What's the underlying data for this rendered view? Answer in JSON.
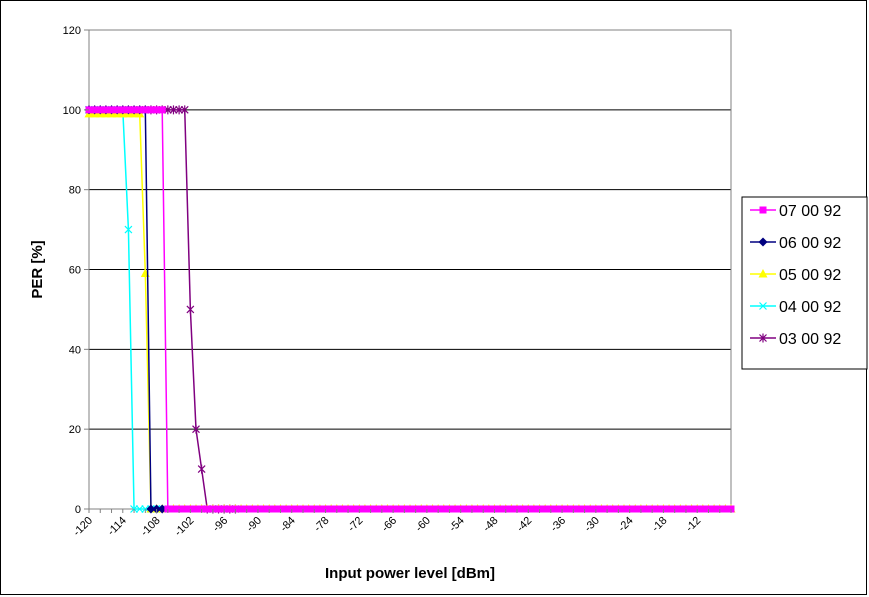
{
  "chart_data": {
    "type": "line",
    "title": "",
    "xlabel": "Input power level [dBm]",
    "ylabel": "PER [%]",
    "xlim": [
      -120,
      -6
    ],
    "ylim": [
      0,
      120
    ],
    "x_ticks": [
      -120,
      -114,
      -108,
      -102,
      -96,
      -90,
      -84,
      -78,
      -72,
      -66,
      -60,
      -54,
      -48,
      -42,
      -36,
      -30,
      -24,
      -18,
      -12
    ],
    "y_ticks": [
      0,
      20,
      40,
      60,
      80,
      100,
      120
    ],
    "grid": "horizontal",
    "legend_position": "right",
    "series": [
      {
        "name": "07 00 92",
        "color": "#ff00ff",
        "marker": "square",
        "x": [
          -120,
          -119,
          -118,
          -117,
          -116,
          -115,
          -114,
          -113,
          -112,
          -111,
          -110,
          -109,
          -108,
          -107,
          -106,
          -105,
          -104,
          -103,
          -102,
          -101,
          -100,
          -99,
          -98,
          -97,
          -96,
          -95,
          -94,
          -93,
          -92,
          -91,
          -90,
          -89,
          -88,
          -87,
          -86,
          -85,
          -84,
          -83,
          -82,
          -81,
          -80,
          -79,
          -78,
          -77,
          -76,
          -75,
          -74,
          -73,
          -72,
          -71,
          -70,
          -69,
          -68,
          -67,
          -66,
          -65,
          -64,
          -63,
          -62,
          -61,
          -60,
          -59,
          -58,
          -57,
          -56,
          -55,
          -54,
          -53,
          -52,
          -51,
          -50,
          -49,
          -48,
          -47,
          -46,
          -45,
          -44,
          -43,
          -42,
          -41,
          -40,
          -39,
          -38,
          -37,
          -36,
          -35,
          -34,
          -33,
          -32,
          -31,
          -30,
          -29,
          -28,
          -27,
          -26,
          -25,
          -24,
          -23,
          -22,
          -21,
          -20,
          -19,
          -18,
          -17,
          -16,
          -15,
          -14,
          -13,
          -12,
          -11,
          -10,
          -9,
          -8,
          -7,
          -6
        ],
        "y": [
          100,
          100,
          100,
          100,
          100,
          100,
          100,
          100,
          100,
          100,
          100,
          100,
          100,
          100,
          0,
          0,
          0,
          0,
          0,
          0,
          0,
          0,
          0,
          0,
          0,
          0,
          0,
          0,
          0,
          0,
          0,
          0,
          0,
          0,
          0,
          0,
          0,
          0,
          0,
          0,
          0,
          0,
          0,
          0,
          0,
          0,
          0,
          0,
          0,
          0,
          0,
          0,
          0,
          0,
          0,
          0,
          0,
          0,
          0,
          0,
          0,
          0,
          0,
          0,
          0,
          0,
          0,
          0,
          0,
          0,
          0,
          0,
          0,
          0,
          0,
          0,
          0,
          0,
          0,
          0,
          0,
          0,
          0,
          0,
          0,
          0,
          0,
          0,
          0,
          0,
          0,
          0,
          0,
          0,
          0,
          0,
          0,
          0,
          0,
          0,
          0,
          0,
          0,
          0,
          0,
          0,
          0,
          0,
          0,
          0,
          0,
          0,
          0,
          0,
          0
        ]
      },
      {
        "name": "06 00 92",
        "color": "#000080",
        "marker": "diamond",
        "x": [
          -120,
          -119,
          -118,
          -117,
          -116,
          -115,
          -114,
          -113,
          -112,
          -111,
          -110,
          -109,
          -108,
          -107
        ],
        "y": [
          100,
          100,
          100,
          100,
          100,
          100,
          100,
          100,
          100,
          100,
          100,
          0,
          0,
          0
        ]
      },
      {
        "name": "05 00 92",
        "color": "#ffff00",
        "marker": "triangle",
        "x": [
          -120,
          -119,
          -118,
          -117,
          -116,
          -115,
          -114,
          -113,
          -112,
          -111,
          -110,
          -109,
          -108,
          -107,
          -106,
          -105,
          -104,
          -103,
          -102,
          -101,
          -100,
          -99,
          -98,
          -97,
          -96,
          -95,
          -94,
          -93,
          -92,
          -91,
          -90,
          -89,
          -88,
          -87,
          -86,
          -85,
          -84,
          -83,
          -82,
          -81,
          -80,
          -79,
          -78,
          -77,
          -76,
          -75,
          -74,
          -73,
          -72,
          -71,
          -70,
          -69,
          -68,
          -67,
          -66,
          -65,
          -64,
          -63,
          -62,
          -61,
          -60,
          -59,
          -58,
          -57,
          -56,
          -55,
          -54,
          -53,
          -52,
          -51,
          -50,
          -49,
          -48,
          -47,
          -46,
          -45,
          -44,
          -43,
          -42,
          -41,
          -40,
          -39,
          -38,
          -37,
          -36,
          -35,
          -34,
          -33,
          -32,
          -31,
          -30,
          -29,
          -28,
          -27,
          -26,
          -25,
          -24,
          -23,
          -22,
          -21,
          -20,
          -19,
          -18,
          -17,
          -16,
          -15,
          -14,
          -13,
          -12,
          -11,
          -10,
          -9,
          -8,
          -7,
          -6
        ],
        "y": [
          99,
          99,
          99,
          99,
          99,
          99,
          99,
          99,
          99,
          99,
          59,
          0,
          0,
          0,
          0,
          0,
          0,
          0,
          0,
          0,
          0,
          0,
          0,
          0,
          0,
          0,
          0,
          0,
          0,
          0,
          0,
          0,
          0,
          0,
          0,
          0,
          0,
          0,
          0,
          0,
          0,
          0,
          0,
          0,
          0,
          0,
          0,
          0,
          0,
          0,
          0,
          0,
          0,
          0,
          0,
          0,
          0,
          0,
          0,
          0,
          0,
          0,
          0,
          0,
          0,
          0,
          0,
          0,
          0,
          0,
          0,
          0,
          0,
          0,
          0,
          0,
          0,
          0,
          0,
          0,
          0,
          0,
          0,
          0,
          0,
          0,
          0,
          0,
          0,
          0,
          0,
          0,
          0,
          0,
          0,
          0,
          0,
          0,
          0,
          0,
          0,
          0,
          0,
          0,
          0,
          0,
          0,
          0,
          0,
          0,
          0,
          0,
          0,
          0,
          0
        ]
      },
      {
        "name": "04 00 92",
        "color": "#00ffff",
        "marker": "x",
        "x": [
          -120,
          -119,
          -118,
          -117,
          -116,
          -115,
          -114,
          -113,
          -112,
          -111,
          -110,
          -109,
          -108,
          -107
        ],
        "y": [
          100,
          100,
          100,
          100,
          100,
          100,
          100,
          70,
          0,
          0,
          0,
          0,
          0,
          0
        ]
      },
      {
        "name": "03 00 92",
        "color": "#800080",
        "marker": "star",
        "x": [
          -120,
          -119,
          -118,
          -117,
          -116,
          -115,
          -114,
          -113,
          -112,
          -111,
          -110,
          -109,
          -108,
          -107,
          -106,
          -105,
          -104,
          -103,
          -102,
          -101,
          -100,
          -99,
          -98,
          -97,
          -96,
          -95,
          -94
        ],
        "y": [
          100,
          100,
          100,
          100,
          100,
          100,
          100,
          100,
          100,
          100,
          100,
          100,
          100,
          100,
          100,
          100,
          100,
          100,
          50,
          20,
          10,
          0,
          0,
          0,
          0,
          0,
          0
        ]
      }
    ]
  }
}
